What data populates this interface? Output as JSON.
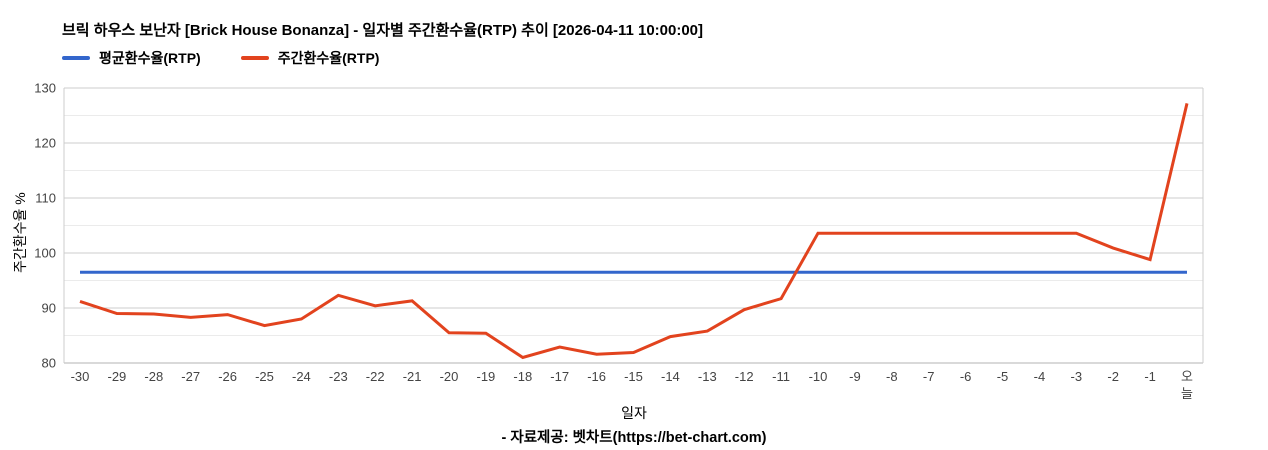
{
  "title": "브릭 하우스 보난자 [Brick House Bonanza] - 일자별 주간환수율(RTP) 추이 [2026-04-11 10:00:00]",
  "game": {
    "name_kr": "브릭 하우스 보난자",
    "name_en": "Brick House Bonanza",
    "as_of": "2026-04-11 10:00:00"
  },
  "legend": {
    "items": [
      {
        "label": "평균환수율(RTP)",
        "color": "#3366cc"
      },
      {
        "label": "주간환수율(RTP)",
        "color": "#e2431e"
      }
    ]
  },
  "footer": "- 자료제공: 벳차트(https://bet-chart.com)",
  "chart_data": {
    "type": "line",
    "title": "브릭 하우스 보난자 [Brick House Bonanza] - 일자별 주간환수율(RTP) 추이 [2026-04-11 10:00:00]",
    "x": [
      "-30",
      "-29",
      "-28",
      "-27",
      "-26",
      "-25",
      "-24",
      "-23",
      "-22",
      "-21",
      "-20",
      "-19",
      "-18",
      "-17",
      "-16",
      "-15",
      "-14",
      "-13",
      "-12",
      "-11",
      "-10",
      "-9",
      "-8",
      "-7",
      "-6",
      "-5",
      "-4",
      "-3",
      "-2",
      "-1",
      "오늘"
    ],
    "series": [
      {
        "name": "평균환수율(RTP)",
        "color": "#3366cc",
        "constant_value": 96.5
      },
      {
        "name": "주간환수율(RTP)",
        "color": "#e2431e",
        "values": [
          91.2,
          89.0,
          88.9,
          88.3,
          88.8,
          86.8,
          88.0,
          92.3,
          90.4,
          91.3,
          85.5,
          85.4,
          81.0,
          82.9,
          81.6,
          81.9,
          84.8,
          85.8,
          89.7,
          91.7,
          103.6,
          103.6,
          103.6,
          103.6,
          103.6,
          103.6,
          103.6,
          103.6,
          100.9,
          98.8,
          127.2
        ]
      }
    ],
    "xlabel": "일자",
    "ylabel": "주간환수율 %",
    "ylim": [
      80,
      130
    ],
    "yticks": [
      80,
      90,
      100,
      110,
      120,
      130
    ],
    "minor_gridlines": [
      85,
      95,
      105,
      115,
      125
    ],
    "grid": true,
    "legend_position": "top",
    "colors": {
      "major_grid": "#cccccc",
      "minor_grid": "#ebebeb",
      "baseline": "#b3b3b3",
      "axis_text": "#444444"
    }
  }
}
